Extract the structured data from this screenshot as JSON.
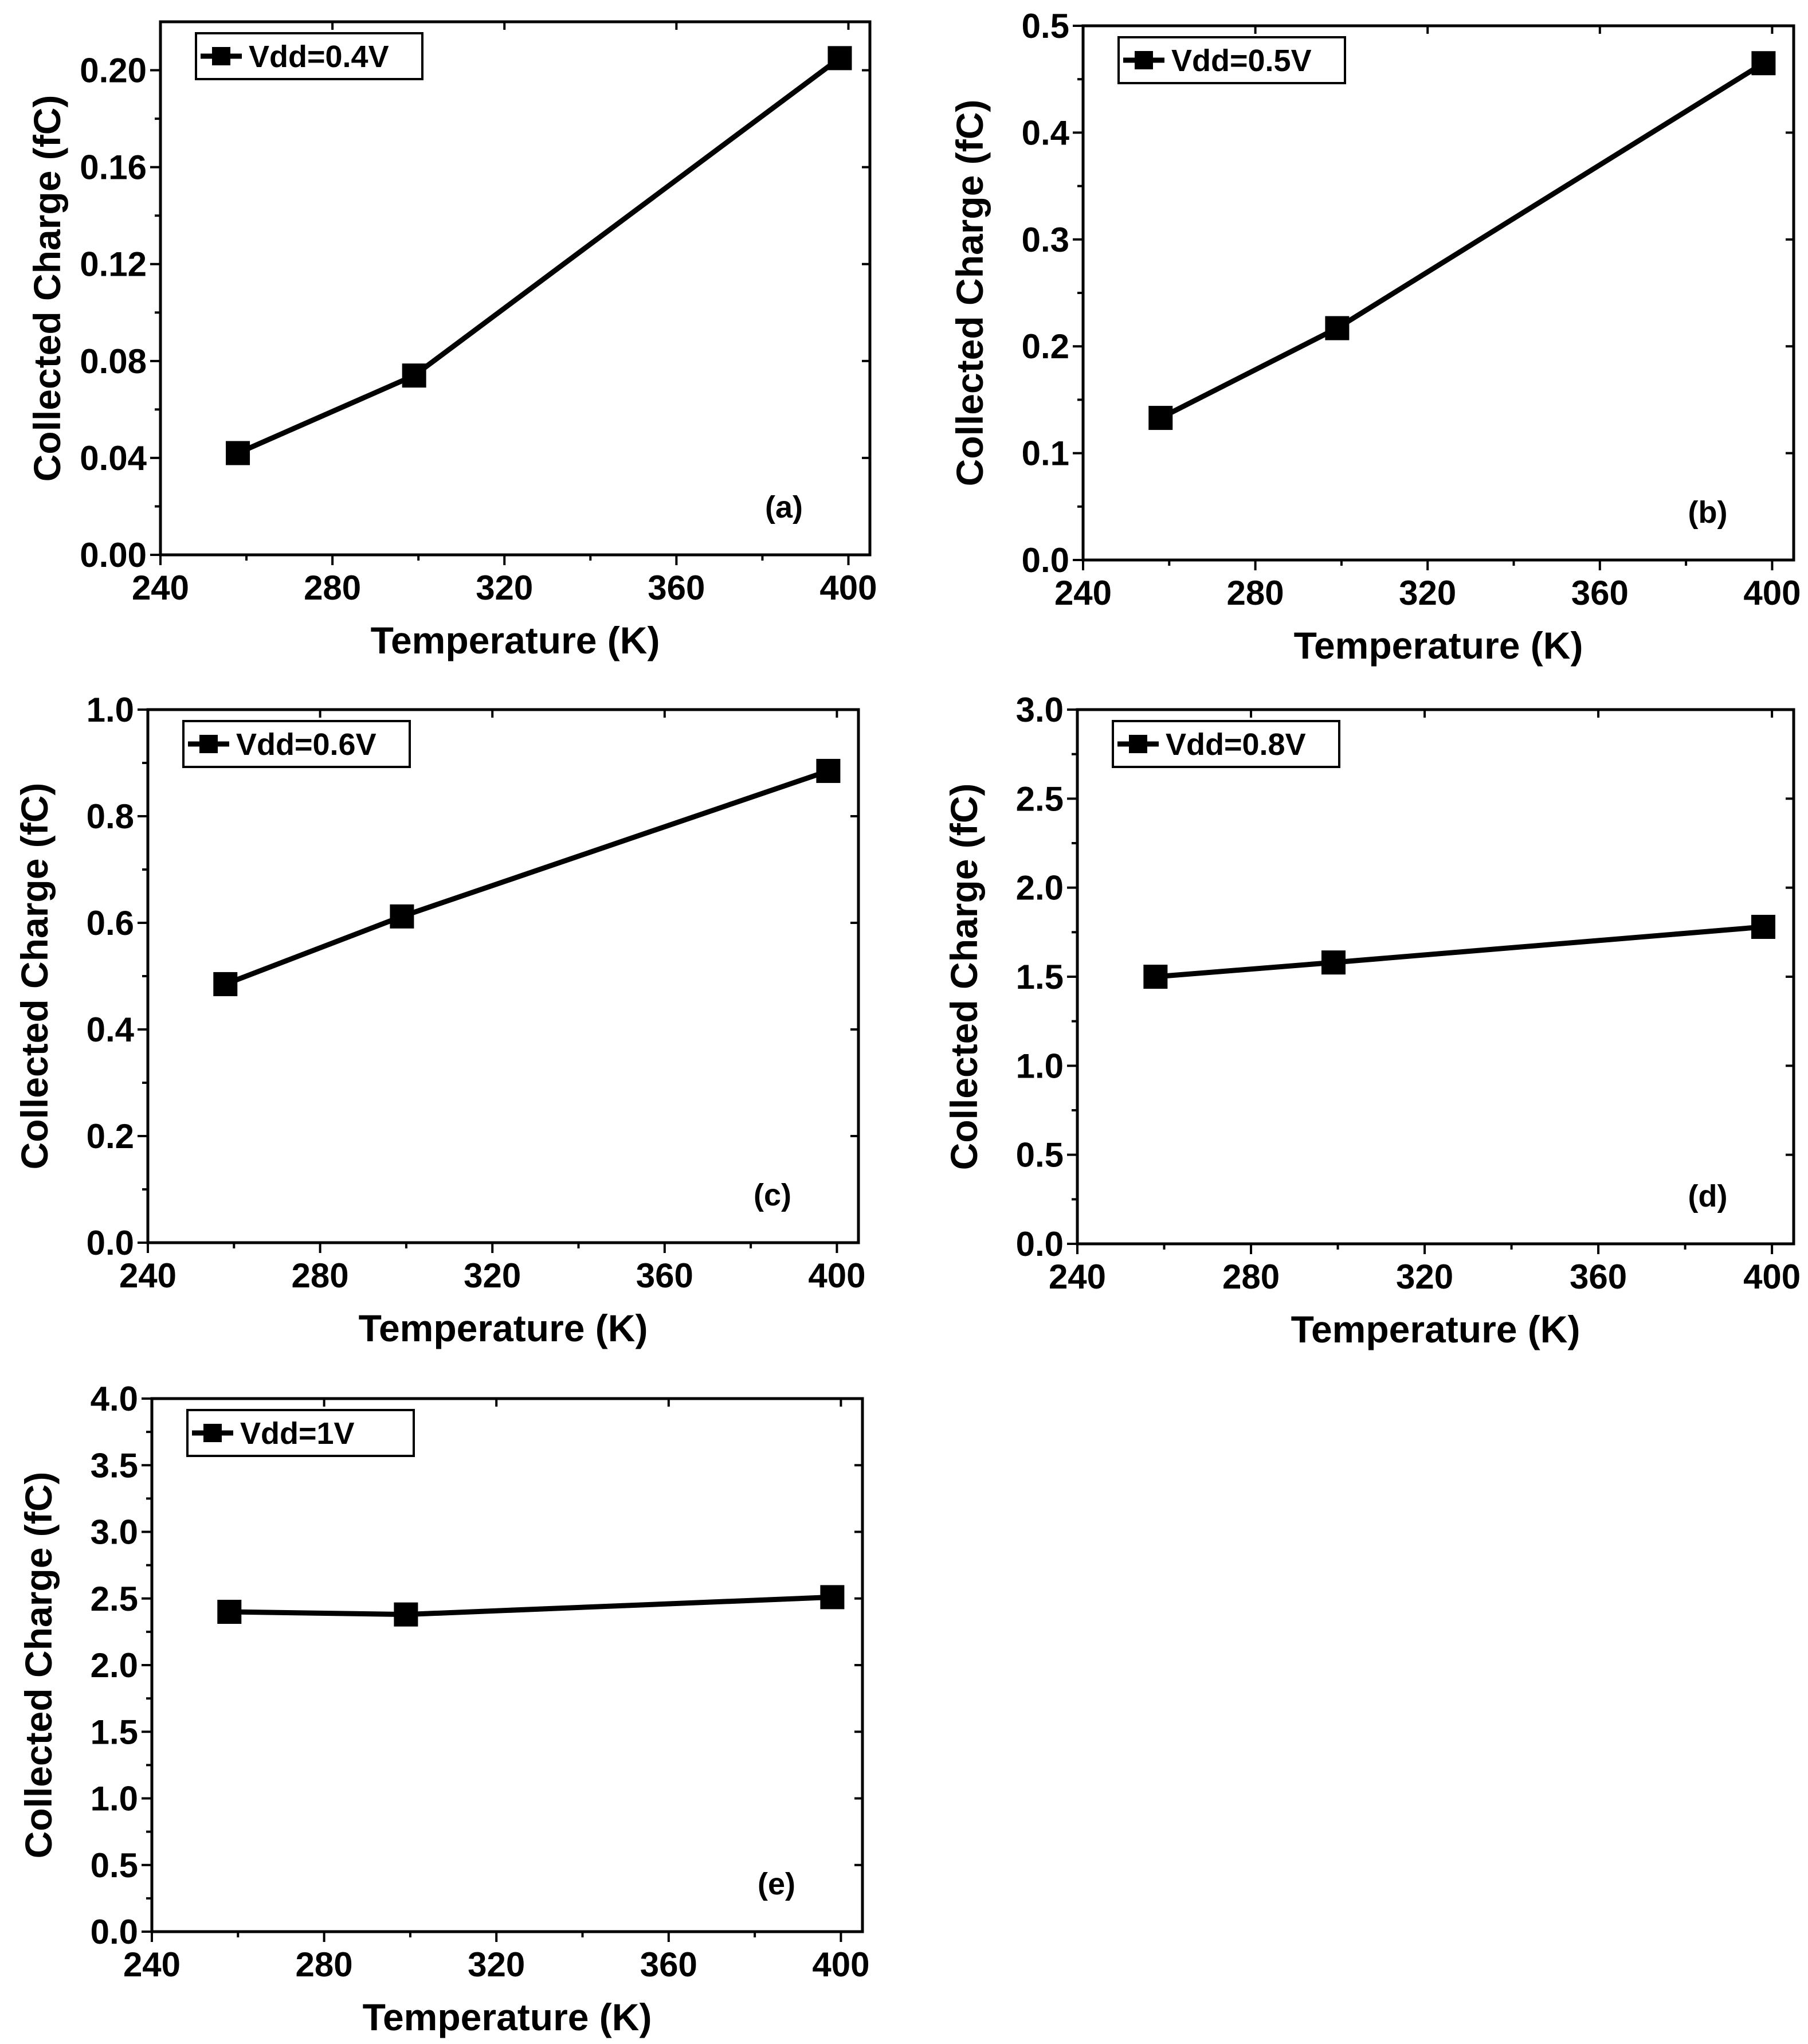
{
  "figure": {
    "chart_data": [
      {
        "type": "line",
        "panel_label": "(a)",
        "xlabel": "Temperature (K)",
        "ylabel": "Collected Charge (fC)",
        "xlim": [
          240,
          405
        ],
        "ylim": [
          0.0,
          0.22
        ],
        "xticks": [
          "240",
          "280",
          "320",
          "360",
          "400"
        ],
        "yticks": [
          "0.00",
          "0.04",
          "0.08",
          "0.12",
          "0.16",
          "0.20"
        ],
        "legend_placement": "top-left",
        "series": [
          {
            "name": "Vdd=0.4V",
            "x": [
              258,
              299,
              398
            ],
            "values": [
              0.042,
              0.074,
              0.205
            ]
          }
        ]
      },
      {
        "type": "line",
        "panel_label": "(b)",
        "xlabel": "Temperature (K)",
        "ylabel": "Collected Charge (fC)",
        "xlim": [
          240,
          405
        ],
        "ylim": [
          0.0,
          0.5
        ],
        "xticks": [
          "240",
          "280",
          "320",
          "360",
          "400"
        ],
        "yticks": [
          "0.0",
          "0.1",
          "0.2",
          "0.3",
          "0.4",
          "0.5"
        ],
        "legend_placement": "top-left",
        "series": [
          {
            "name": "Vdd=0.5V",
            "x": [
              258,
              299,
              398
            ],
            "values": [
              0.133,
              0.217,
              0.465
            ]
          }
        ]
      },
      {
        "type": "line",
        "panel_label": "(c)",
        "xlabel": "Temperature (K)",
        "ylabel": "Collected Charge (fC)",
        "xlim": [
          240,
          405
        ],
        "ylim": [
          0.0,
          1.0
        ],
        "xticks": [
          "240",
          "280",
          "320",
          "360",
          "400"
        ],
        "yticks": [
          "0.0",
          "0.2",
          "0.4",
          "0.6",
          "0.8",
          "1.0"
        ],
        "legend_placement": "top-left",
        "series": [
          {
            "name": "Vdd=0.6V",
            "x": [
              258,
              299,
              398
            ],
            "values": [
              0.485,
              0.612,
              0.885
            ]
          }
        ]
      },
      {
        "type": "line",
        "panel_label": "(d)",
        "xlabel": "Temperature (K)",
        "ylabel": "Collected Charge (fC)",
        "xlim": [
          240,
          405
        ],
        "ylim": [
          0.0,
          3.0
        ],
        "xticks": [
          "240",
          "280",
          "320",
          "360",
          "400"
        ],
        "yticks": [
          "0.0",
          "0.5",
          "1.0",
          "1.5",
          "2.0",
          "2.5",
          "3.0"
        ],
        "legend_placement": "top-left",
        "series": [
          {
            "name": "Vdd=0.8V",
            "x": [
              258,
              299,
              398
            ],
            "values": [
              1.5,
              1.58,
              1.78
            ]
          }
        ]
      },
      {
        "type": "line",
        "panel_label": "(e)",
        "xlabel": "Temperature (K)",
        "ylabel": "Collected Charge (fC)",
        "xlim": [
          240,
          405
        ],
        "ylim": [
          0.0,
          4.0
        ],
        "xticks": [
          "240",
          "280",
          "320",
          "360",
          "400"
        ],
        "yticks": [
          "0.0",
          "0.5",
          "1.0",
          "1.5",
          "2.0",
          "2.5",
          "3.0",
          "3.5",
          "4.0"
        ],
        "legend_placement": "top-left",
        "series": [
          {
            "name": "Vdd=1V",
            "x": [
              258,
              299,
              398
            ],
            "values": [
              2.4,
              2.38,
              2.51
            ]
          }
        ]
      }
    ]
  }
}
